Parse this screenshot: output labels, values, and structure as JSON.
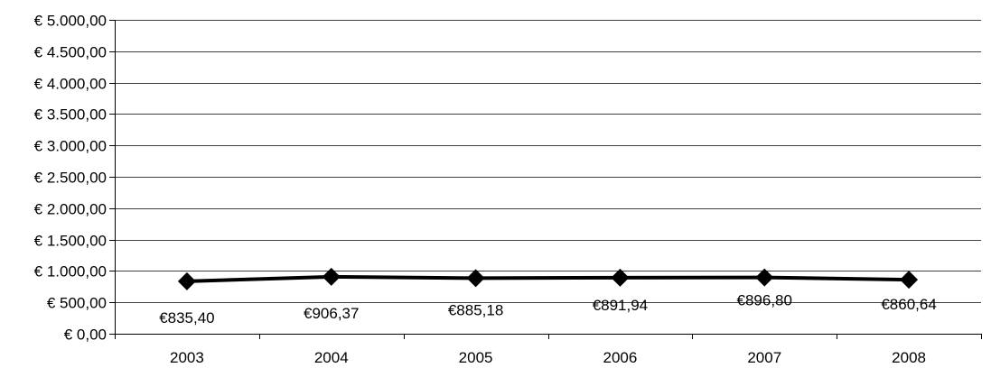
{
  "chart_data": {
    "type": "line",
    "categories": [
      "2003",
      "2004",
      "2005",
      "2006",
      "2007",
      "2008"
    ],
    "series": [
      {
        "values": [
          835.4,
          906.37,
          885.18,
          891.94,
          896.8,
          860.64
        ],
        "data_labels": [
          "€835,40",
          "€906,37",
          "€885,18",
          "€891,94",
          "€896,80",
          "€860,64"
        ],
        "color": "#000000",
        "marker": "diamond"
      }
    ],
    "y_ticks": [
      0,
      500,
      1000,
      1500,
      2000,
      2500,
      3000,
      3500,
      4000,
      4500,
      5000
    ],
    "y_tick_labels": [
      "€ 0,00",
      "€ 500,00",
      "€ 1.000,00",
      "€ 1.500,00",
      "€ 2.000,00",
      "€ 2.500,00",
      "€ 3.000,00",
      "€ 3.500,00",
      "€ 4.000,00",
      "€ 4.500,00",
      "€ 5.000,00"
    ],
    "ylim": [
      0,
      5000
    ],
    "grid": true,
    "legend": "none",
    "title": "",
    "xlabel": "",
    "ylabel": ""
  }
}
